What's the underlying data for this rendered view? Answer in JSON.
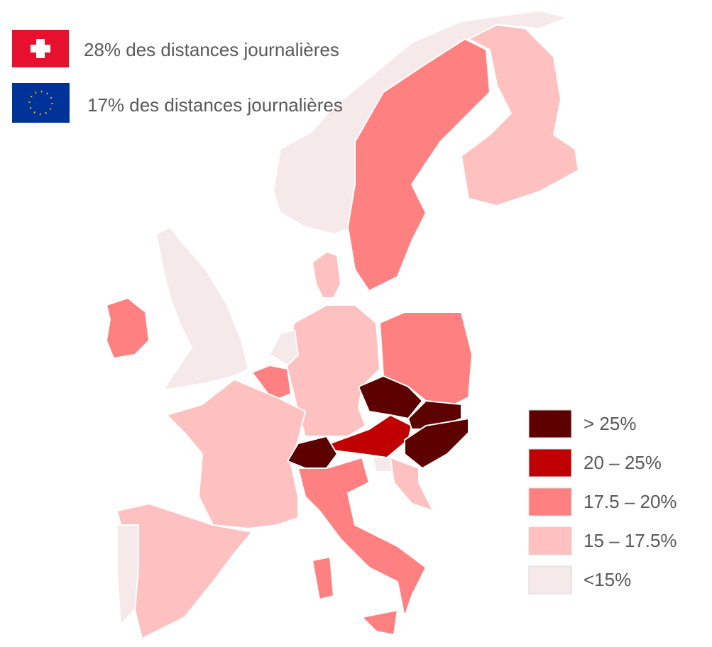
{
  "header": {
    "lines": [
      "28% des distances journalières",
      "17% des distances journalières"
    ]
  },
  "legend": {
    "items": [
      {
        "label": "> 25%",
        "color": "#5c0000"
      },
      {
        "label": "20 – 25%",
        "color": "#c00000"
      },
      {
        "label": "17.5 – 20%",
        "color": "#ff8080"
      },
      {
        "label": "15 – 17.5%",
        "color": "#ffc0c0"
      },
      {
        "label": "<15%",
        "color": "#f5e9e9"
      }
    ]
  }
}
